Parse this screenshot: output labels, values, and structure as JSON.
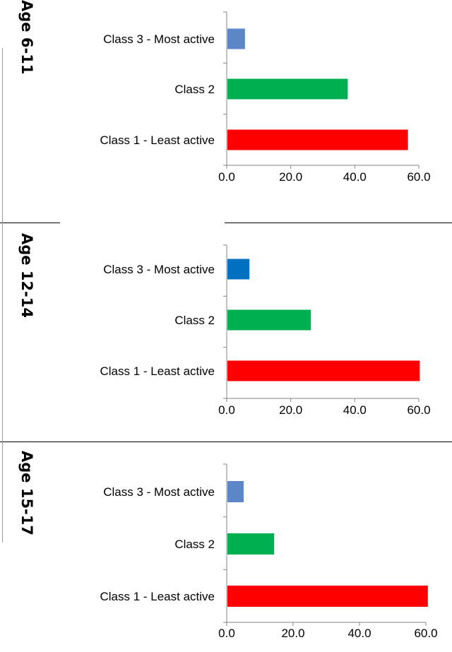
{
  "colors": {
    "red": "#ff0000",
    "green": "#00b050",
    "blue_light": "#5b87c6",
    "blue": "#0070c0",
    "axis": "#868686"
  },
  "chart_data": [
    {
      "type": "bar",
      "orientation": "horizontal",
      "panel_label": "Age 6-11",
      "categories": [
        "Class 3 - Most active",
        "Class 2",
        "Class 1 - Least active"
      ],
      "values": [
        5.7,
        37.8,
        56.6
      ],
      "bar_colors": [
        "#5b87c6",
        "#00b050",
        "#ff0000"
      ],
      "xlim": [
        0,
        60
      ],
      "xticks": [
        "0.0",
        "20.0",
        "40.0",
        "60.0"
      ],
      "grid": false,
      "legend": "none"
    },
    {
      "type": "bar",
      "orientation": "horizontal",
      "panel_label": "Age 12-14",
      "categories": [
        "Class 3 - Most active",
        "Class 2",
        "Class 1 - Least active"
      ],
      "values": [
        7.1,
        26.3,
        60.3
      ],
      "bar_colors": [
        "#0070c0",
        "#00b050",
        "#ff0000"
      ],
      "xlim": [
        0,
        60
      ],
      "xticks": [
        "0.0",
        "20.0",
        "40.0",
        "60.0"
      ],
      "grid": false,
      "legend": "none"
    },
    {
      "type": "bar",
      "orientation": "horizontal",
      "panel_label": "Age 15-17",
      "categories": [
        "Class 3 - Most active",
        "Class 2",
        "Class 1 - Least active"
      ],
      "values": [
        5.1,
        14.3,
        60.6
      ],
      "bar_colors": [
        "#5b87c6",
        "#00b050",
        "#ff0000"
      ],
      "xlim": [
        0,
        60
      ],
      "xticks": [
        "0.0",
        "20.0",
        "40.0",
        "60.0"
      ],
      "grid": false,
      "legend": "none"
    }
  ]
}
